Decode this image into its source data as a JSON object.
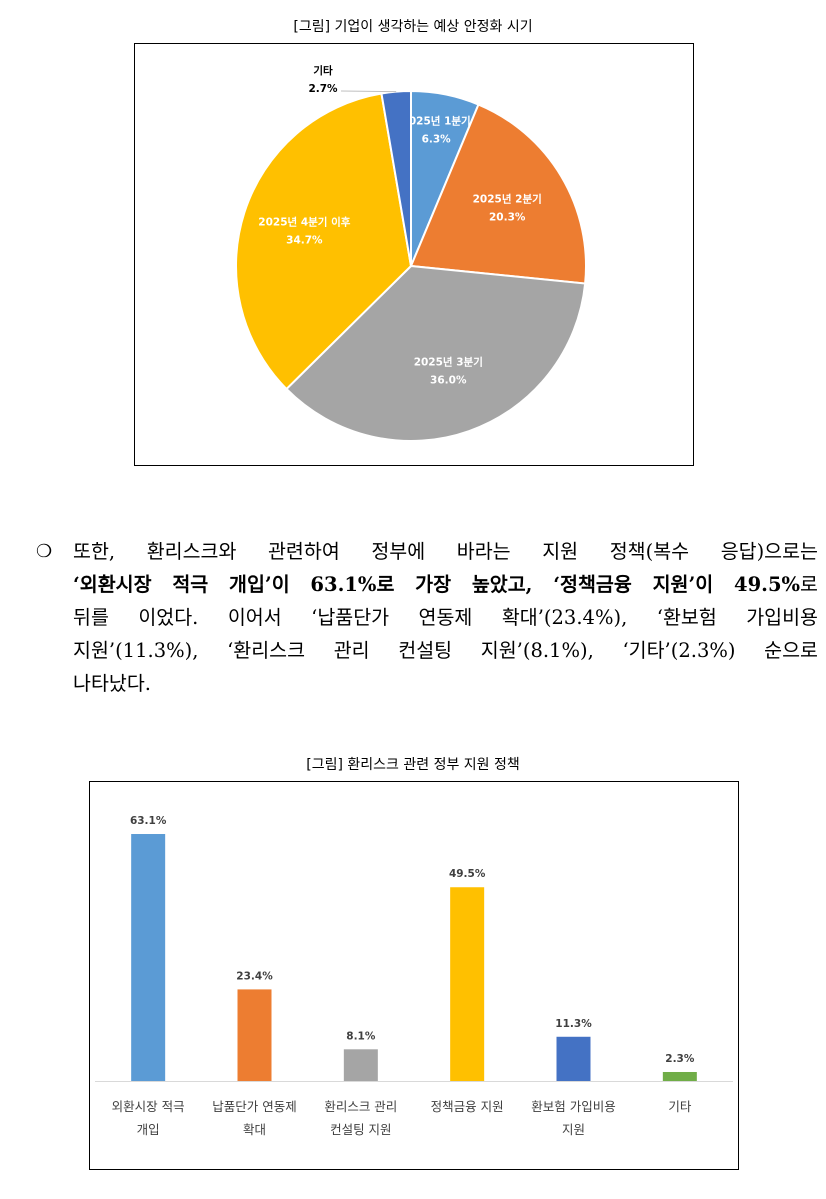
{
  "figure1": {
    "caption": "[그림] 기업이 생각하는 예상 안정화 시기",
    "chart_data": {
      "type": "pie",
      "slices": [
        {
          "label": "2025년 1분기",
          "value": 6.3,
          "value_label": "6.3%",
          "color": "#5B9BD5"
        },
        {
          "label": "2025년 2분기",
          "value": 20.3,
          "value_label": "20.3%",
          "color": "#ED7D31"
        },
        {
          "label": "2025년 3분기",
          "value": 36.0,
          "value_label": "36.0%",
          "color": "#A5A5A5"
        },
        {
          "label": "2025년 4분기 이후",
          "value": 34.7,
          "value_label": "34.7%",
          "color": "#FFC000"
        },
        {
          "label": "기타",
          "value": 2.7,
          "value_label": "2.7%",
          "color": "#4472C4"
        }
      ]
    }
  },
  "paragraph": {
    "bullet": "❍",
    "lines": [
      [
        {
          "t": "또한, 환리스크와 관련하여 정부에 바라는 지원 정책(복수 응답)으로는",
          "b": false
        }
      ],
      [
        {
          "t": "‘외환시장 적극 개입’이 63.1%로 가장 높았고, ‘정책금융 지원’이 49.5%",
          "b": true
        },
        {
          "t": "로",
          "b": false
        }
      ],
      [
        {
          "t": "뒤를 이었다. 이어서 ‘납품단가 연동제 확대’(23.4%), ‘환보험 가입비용",
          "b": false
        }
      ],
      [
        {
          "t": "지원’(11.3%), ‘환리스크 관리 컨설팅 지원’(8.1%), ‘기타’(2.3%) 순으로",
          "b": false
        }
      ],
      [
        {
          "t": "나타났다.",
          "b": false
        }
      ]
    ]
  },
  "figure2": {
    "caption": "[그림] 환리스크 관련 정부 지원 정책",
    "chart_data": {
      "type": "bar",
      "categories": [
        [
          "외환시장 적극",
          "개입"
        ],
        [
          "납품단가 연동제",
          "확대"
        ],
        [
          "환리스크 관리",
          "컨설팅 지원"
        ],
        [
          "정책금융 지원"
        ],
        [
          "환보험 가입비용",
          "지원"
        ],
        [
          "기타"
        ]
      ],
      "values": [
        63.1,
        23.4,
        8.1,
        49.5,
        11.3,
        2.3
      ],
      "value_labels": [
        "63.1%",
        "23.4%",
        "8.1%",
        "49.5%",
        "11.3%",
        "2.3%"
      ],
      "colors": [
        "#5B9BD5",
        "#ED7D31",
        "#A5A5A5",
        "#FFC000",
        "#4472C4",
        "#70AD47"
      ],
      "ylim": [
        0,
        70
      ],
      "grid": false,
      "legend": "none"
    }
  }
}
